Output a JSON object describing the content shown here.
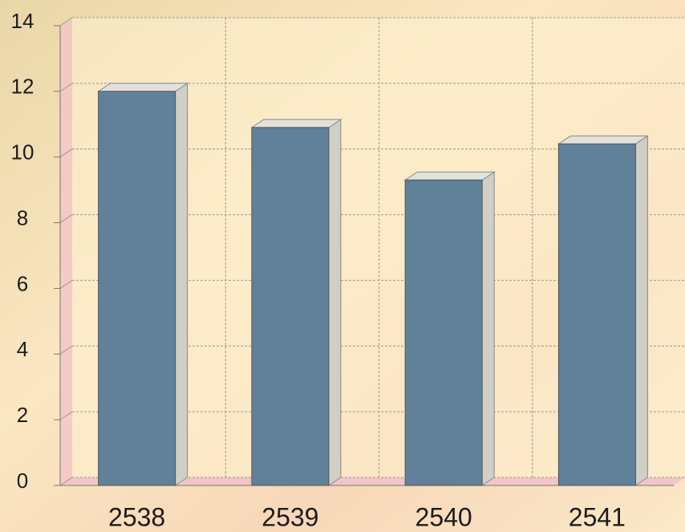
{
  "chart_data": {
    "type": "bar",
    "categories": [
      "2538",
      "2539",
      "2540",
      "2541"
    ],
    "values": [
      12.0,
      10.9,
      9.3,
      10.4
    ],
    "color": "#61819a",
    "ylim": [
      0,
      14
    ],
    "yticks": [
      0,
      2,
      4,
      6,
      8,
      10,
      12,
      14
    ],
    "grid": true
  }
}
